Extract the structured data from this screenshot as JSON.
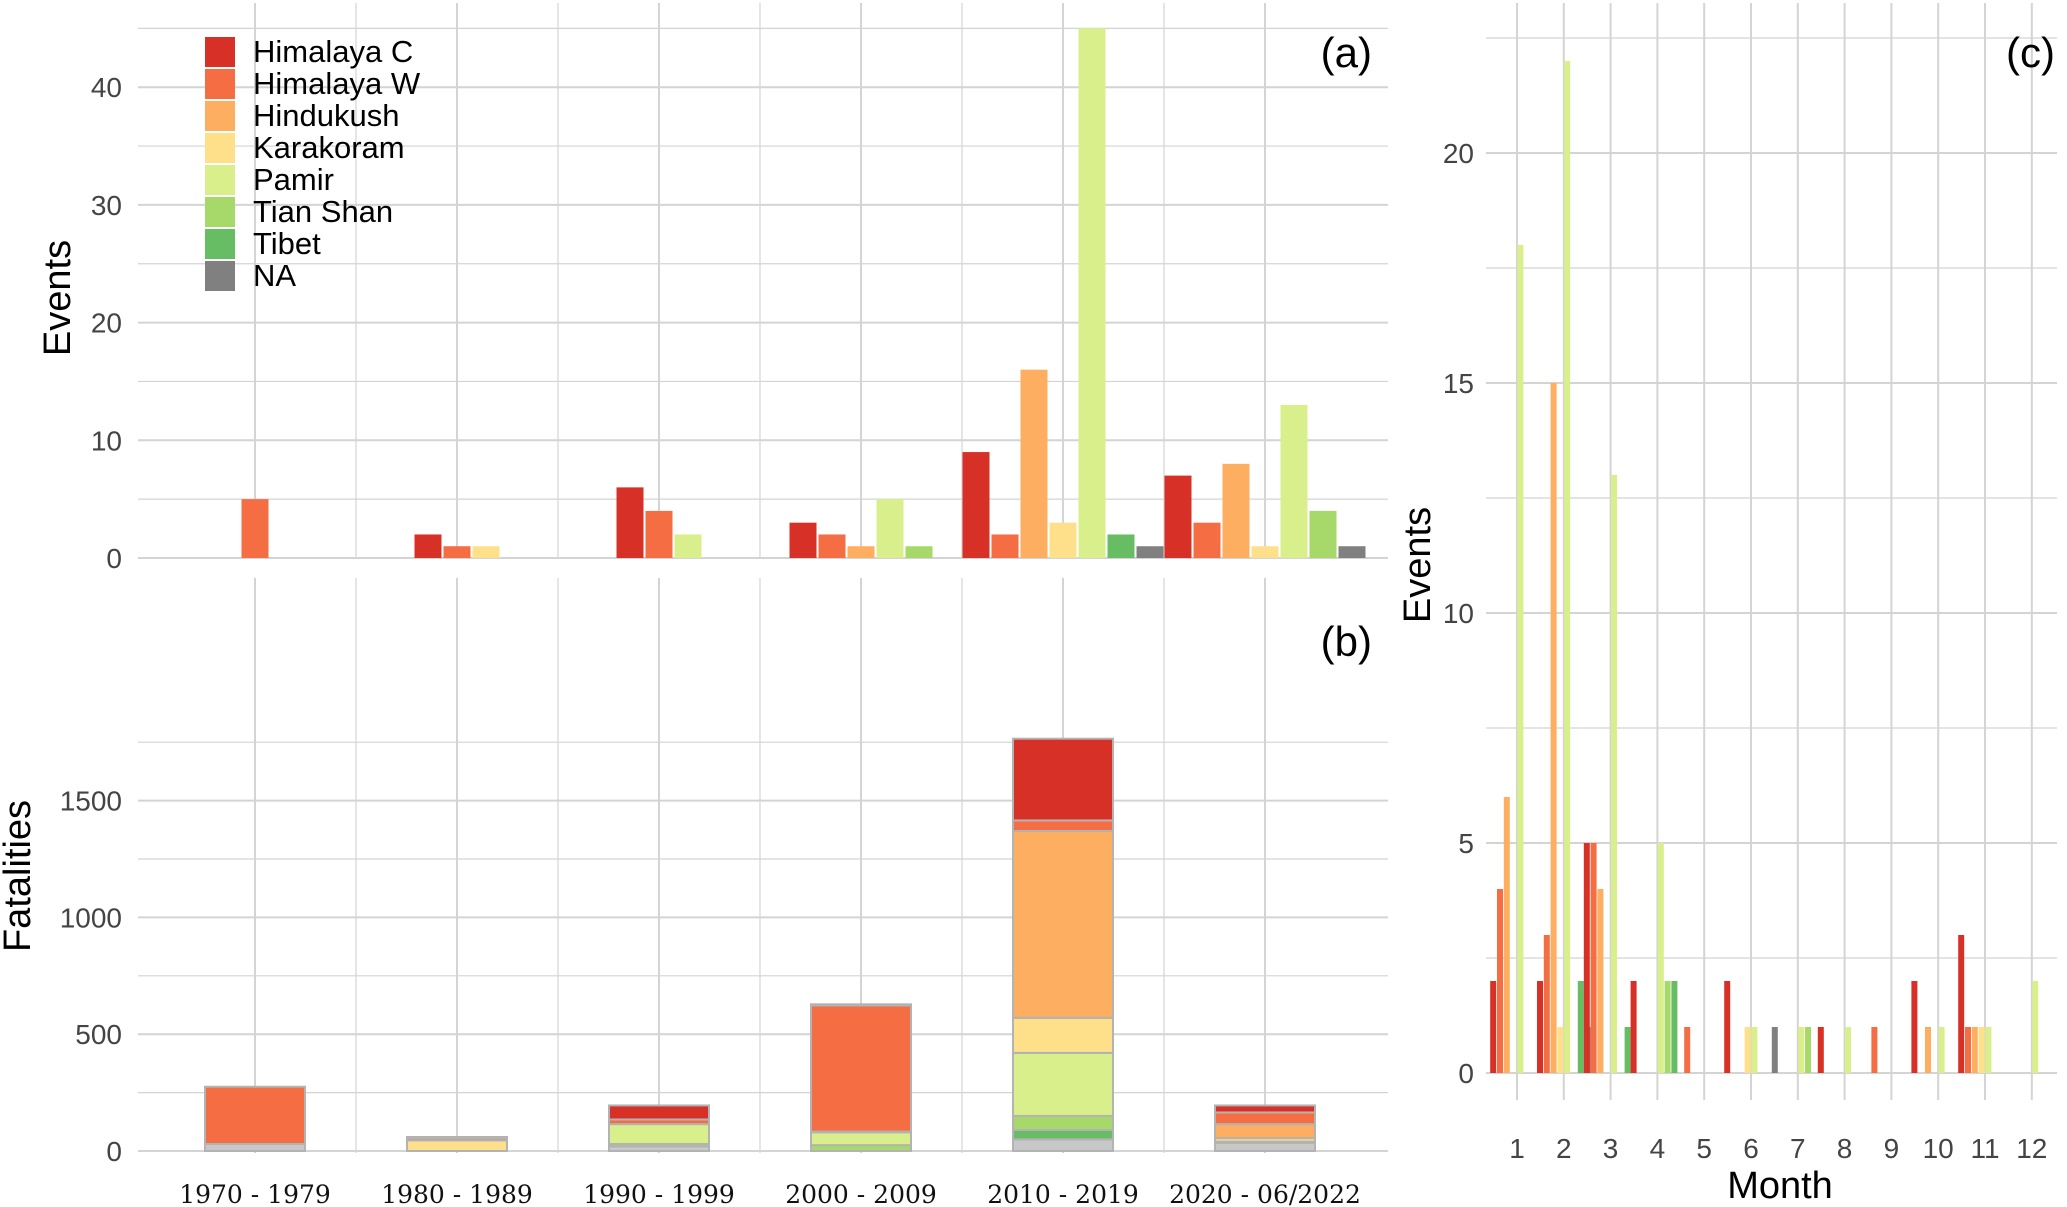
{
  "colors": {
    "Himalaya C": "#d73027",
    "Himalaya W": "#f46d43",
    "Hindukush": "#fdae61",
    "Karakoram": "#fee08b",
    "Pamir": "#d9ef8b",
    "Tian Shan": "#a6d96a",
    "Tibet": "#66bd63",
    "NA": "#808080",
    "grid": "#d4d4d4",
    "segment_outline": "#b3b3b3"
  },
  "chart_data": [
    {
      "panel": "a",
      "panel_label": "(a)",
      "type": "bar",
      "ylabel": "Events",
      "ylim": [
        0,
        45
      ],
      "yticks": [
        0,
        10,
        20,
        30,
        40
      ],
      "categories": [
        "1970 - 1979",
        "1980 - 1989",
        "1990 - 1999",
        "2000 - 2009",
        "2010 - 2019",
        "2020 - 06/2022"
      ],
      "legend": {
        "position": "top-left",
        "entries": [
          "Himalaya C",
          "Himalaya W",
          "Hindukush",
          "Karakoram",
          "Pamir",
          "Tian Shan",
          "Tibet",
          "NA"
        ]
      },
      "series": [
        {
          "name": "Himalaya C",
          "values": [
            0,
            2,
            6,
            3,
            9,
            7
          ]
        },
        {
          "name": "Himalaya W",
          "values": [
            5,
            1,
            4,
            2,
            2,
            3
          ]
        },
        {
          "name": "Hindukush",
          "values": [
            0,
            0,
            0,
            1,
            16,
            8
          ]
        },
        {
          "name": "Karakoram",
          "values": [
            0,
            1,
            0,
            0,
            3,
            1
          ]
        },
        {
          "name": "Pamir",
          "values": [
            0,
            0,
            2,
            5,
            45,
            13
          ]
        },
        {
          "name": "Tian Shan",
          "values": [
            0,
            0,
            0,
            1,
            0,
            4
          ]
        },
        {
          "name": "Tibet",
          "values": [
            0,
            0,
            0,
            0,
            2,
            0
          ]
        },
        {
          "name": "NA",
          "values": [
            0,
            0,
            0,
            0,
            1,
            1
          ]
        }
      ]
    },
    {
      "panel": "b",
      "panel_label": "(b)",
      "type": "bar",
      "stacked": true,
      "ylabel": "Fatalities",
      "ylim": [
        0,
        1750
      ],
      "yticks": [
        0,
        500,
        1000,
        1500
      ],
      "categories": [
        "1970 - 1979",
        "1980 - 1989",
        "1990 - 1999",
        "2000 - 2009",
        "2010 - 2019",
        "2020 - 06/2022"
      ],
      "series": [
        {
          "name": "Himalaya C",
          "values": [
            0,
            5,
            60,
            5,
            350,
            30
          ]
        },
        {
          "name": "Himalaya W",
          "values": [
            245,
            10,
            20,
            540,
            45,
            50
          ]
        },
        {
          "name": "Hindukush",
          "values": [
            0,
            0,
            0,
            3,
            800,
            60
          ]
        },
        {
          "name": "Karakoram",
          "values": [
            0,
            45,
            0,
            0,
            150,
            15
          ]
        },
        {
          "name": "Pamir",
          "values": [
            0,
            0,
            85,
            55,
            270,
            5
          ]
        },
        {
          "name": "Tian Shan",
          "values": [
            0,
            0,
            10,
            25,
            60,
            0
          ]
        },
        {
          "name": "Tibet",
          "values": [
            0,
            0,
            0,
            0,
            40,
            0
          ]
        },
        {
          "name": "NA",
          "values": [
            30,
            0,
            20,
            0,
            50,
            35
          ]
        }
      ]
    },
    {
      "panel": "c",
      "panel_label": "(c)",
      "type": "bar",
      "xlabel": "Month",
      "ylabel": "Events",
      "ylim": [
        0,
        22
      ],
      "yticks": [
        0,
        5,
        10,
        15,
        20
      ],
      "categories": [
        "1",
        "2",
        "3",
        "4",
        "5",
        "6",
        "7",
        "8",
        "9",
        "10",
        "11",
        "12"
      ],
      "series": [
        {
          "name": "Himalaya C",
          "values": [
            2,
            2,
            5,
            2,
            0,
            2,
            0,
            1,
            0,
            2,
            3,
            0
          ]
        },
        {
          "name": "Himalaya W",
          "values": [
            4,
            3,
            5,
            0,
            1,
            0,
            0,
            0,
            1,
            0,
            1,
            0
          ]
        },
        {
          "name": "Hindukush",
          "values": [
            6,
            15,
            4,
            0,
            0,
            0,
            0,
            0,
            0,
            1,
            1,
            0
          ]
        },
        {
          "name": "Karakoram",
          "values": [
            0,
            1,
            0,
            0,
            0,
            1,
            0,
            0,
            0,
            0,
            1,
            0
          ]
        },
        {
          "name": "Pamir",
          "values": [
            18,
            22,
            13,
            5,
            0,
            1,
            1,
            1,
            0,
            1,
            1,
            2
          ]
        },
        {
          "name": "Tian Shan",
          "values": [
            0,
            0,
            0,
            2,
            0,
            0,
            1,
            0,
            0,
            0,
            0,
            0
          ]
        },
        {
          "name": "Tibet",
          "values": [
            0,
            2,
            1,
            2,
            0,
            0,
            0,
            0,
            0,
            0,
            0,
            0
          ]
        },
        {
          "name": "NA",
          "values": [
            0,
            1,
            0,
            0,
            0,
            1,
            0,
            0,
            0,
            0,
            0,
            0
          ]
        }
      ]
    }
  ]
}
